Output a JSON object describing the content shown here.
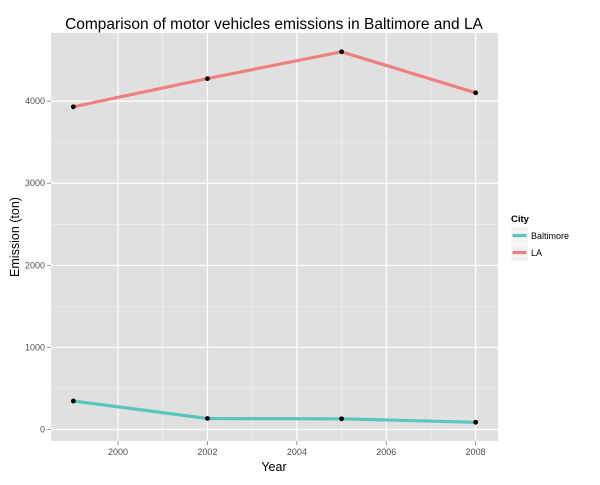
{
  "chart_data": {
    "type": "line",
    "title": "Comparison of motor vehicles emissions in Baltimore and LA",
    "xlabel": "Year",
    "ylabel": "Emission (ton)",
    "x": [
      1999,
      2002,
      2005,
      2008
    ],
    "xlim": [
      1998.5,
      2008.5
    ],
    "ylim": [
      -140,
      4830
    ],
    "xticks": [
      2000,
      2002,
      2004,
      2006,
      2008
    ],
    "yticks": [
      0,
      1000,
      2000,
      3000,
      4000
    ],
    "xtick_labels": [
      "2000",
      "2002",
      "2004",
      "2006",
      "2008"
    ],
    "ytick_labels": [
      "0",
      "1000",
      "2000",
      "3000",
      "4000"
    ],
    "grid": true,
    "legend": {
      "title": "City",
      "position": "right"
    },
    "series": [
      {
        "name": "Baltimore",
        "color": "#5bc4bf",
        "values": [
          346.8,
          134.3,
          130.4,
          88.3
        ]
      },
      {
        "name": "LA",
        "color": "#f08080",
        "values": [
          3931.1,
          4274.0,
          4601.4,
          4101.3
        ]
      }
    ],
    "panel_color": "#e0e0e0",
    "point_color": "#000000"
  }
}
